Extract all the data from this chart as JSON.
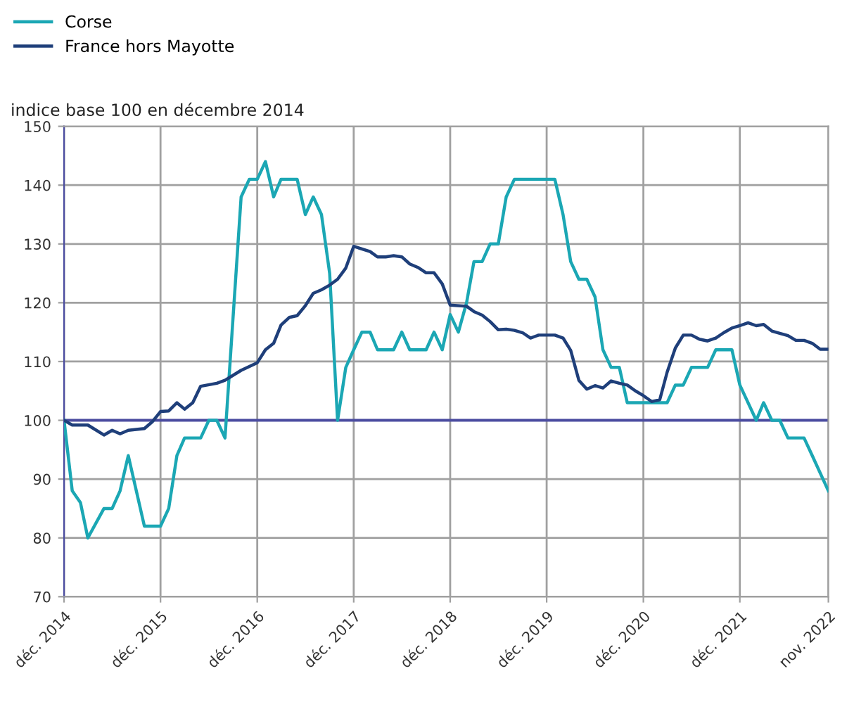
{
  "chart_data": {
    "type": "line",
    "ylabel": "indice base 100 en décembre 2014",
    "series": [
      {
        "name": "Corse",
        "color": "#1ba7b4",
        "x": [
          "2014-12",
          "2015-01",
          "2015-02",
          "2015-03",
          "2015-05",
          "2015-06",
          "2015-07",
          "2015-08",
          "2015-10",
          "2015-12",
          "2016-01",
          "2016-02",
          "2016-03",
          "2016-05",
          "2016-06",
          "2016-07",
          "2016-08",
          "2016-10",
          "2016-11",
          "2016-12",
          "2017-01",
          "2017-02",
          "2017-03",
          "2017-05",
          "2017-06",
          "2017-07",
          "2017-08",
          "2017-09",
          "2017-10",
          "2017-11",
          "2017-12",
          "2018-01",
          "2018-02",
          "2018-03",
          "2018-05",
          "2018-06",
          "2018-07",
          "2018-09",
          "2018-10",
          "2018-11",
          "2018-12",
          "2019-01",
          "2019-02",
          "2019-03",
          "2019-04",
          "2019-05",
          "2019-06",
          "2019-07",
          "2019-08",
          "2020-01",
          "2020-02",
          "2020-03",
          "2020-04",
          "2020-05",
          "2020-06",
          "2020-07",
          "2020-08",
          "2020-09",
          "2020-10",
          "2021-03",
          "2021-04",
          "2021-05",
          "2021-06",
          "2021-08",
          "2021-09",
          "2021-11",
          "2021-12",
          "2022-02",
          "2022-03",
          "2022-04",
          "2022-05",
          "2022-06",
          "2022-08",
          "2022-09",
          "2022-11"
        ],
        "values": [
          100,
          88,
          86,
          80,
          85,
          85,
          88,
          94,
          82,
          82,
          85,
          94,
          97,
          97,
          100,
          100,
          97,
          138,
          141,
          141,
          144,
          138,
          141,
          141,
          135,
          138,
          135,
          125,
          100,
          109,
          112,
          115,
          115,
          112,
          112,
          115,
          112,
          112,
          115,
          112,
          118,
          115,
          120,
          127,
          127,
          130,
          130,
          138,
          141,
          141,
          135,
          127,
          124,
          124,
          121,
          112,
          109,
          109,
          103,
          103,
          106,
          106,
          109,
          109,
          112,
          112,
          106,
          100,
          103,
          100,
          100,
          97,
          97,
          94,
          88
        ]
      },
      {
        "name": "France hors Mayotte",
        "color": "#1f3f7a",
        "x": [
          "2014-12",
          "2015-01",
          "2015-03",
          "2015-05",
          "2015-06",
          "2015-07",
          "2015-08",
          "2015-10",
          "2015-11",
          "2015-12",
          "2016-01",
          "2016-02",
          "2016-03",
          "2016-04",
          "2016-05",
          "2016-07",
          "2016-08",
          "2016-10",
          "2016-12",
          "2017-01",
          "2017-02",
          "2017-03",
          "2017-04",
          "2017-05",
          "2017-06",
          "2017-07",
          "2017-08",
          "2017-09",
          "2017-10",
          "2017-11",
          "2017-12",
          "2018-02",
          "2018-03",
          "2018-04",
          "2018-05",
          "2018-06",
          "2018-07",
          "2018-08",
          "2018-09",
          "2018-10",
          "2018-11",
          "2018-12",
          "2019-02",
          "2019-03",
          "2019-04",
          "2019-05",
          "2019-06",
          "2019-07",
          "2019-08",
          "2019-09",
          "2019-10",
          "2019-11",
          "2020-01",
          "2020-02",
          "2020-03",
          "2020-04",
          "2020-05",
          "2020-06",
          "2020-07",
          "2020-08",
          "2020-09",
          "2020-10",
          "2020-11",
          "2020-12",
          "2021-01",
          "2021-02",
          "2021-03",
          "2021-04",
          "2021-05",
          "2021-06",
          "2021-07",
          "2021-08",
          "2021-09",
          "2021-10",
          "2021-11",
          "2021-12",
          "2022-01",
          "2022-02",
          "2022-03",
          "2022-04",
          "2022-05",
          "2022-06",
          "2022-07",
          "2022-08",
          "2022-09",
          "2022-10",
          "2022-11"
        ],
        "values": [
          100,
          99.2,
          99.2,
          97.5,
          98.3,
          97.7,
          98.3,
          98.6,
          99.8,
          101.5,
          101.6,
          103,
          101.9,
          103,
          105.8,
          106.3,
          106.8,
          108.5,
          109.8,
          112,
          113.1,
          116.2,
          117.5,
          117.8,
          119.5,
          121.6,
          122.2,
          123,
          124,
          125.9,
          129.6,
          128.7,
          127.8,
          127.8,
          128,
          127.8,
          126.6,
          126,
          125.1,
          125.1,
          123.2,
          119.6,
          119.4,
          118.5,
          117.9,
          116.8,
          115.4,
          115.5,
          115.3,
          114.9,
          114,
          114.5,
          114.5,
          114,
          111.9,
          106.8,
          105.3,
          105.9,
          105.5,
          106.7,
          106.3,
          106,
          105,
          104.2,
          103.2,
          103.5,
          108.2,
          112.3,
          114.5,
          114.5,
          113.8,
          113.5,
          114,
          114.9,
          115.7,
          116.1,
          116.6,
          116.1,
          116.3,
          115.2,
          114.8,
          114.4,
          113.6,
          113.6,
          113.1,
          112.1,
          112.1
        ]
      }
    ],
    "xlim": [
      "2014-12",
      "2022-11"
    ],
    "xticks": [
      {
        "value": "2014-12",
        "label": "déc. 2014"
      },
      {
        "value": "2015-12",
        "label": "déc. 2015"
      },
      {
        "value": "2016-12",
        "label": "déc. 2016"
      },
      {
        "value": "2017-12",
        "label": "déc. 2017"
      },
      {
        "value": "2018-12",
        "label": "déc. 2018"
      },
      {
        "value": "2019-12",
        "label": "déc. 2019"
      },
      {
        "value": "2020-12",
        "label": "déc. 2020"
      },
      {
        "value": "2021-12",
        "label": "déc. 2021"
      },
      {
        "value": "2022-11",
        "label": "nov. 2022"
      }
    ],
    "ylim": [
      70,
      150
    ],
    "yticks": [
      70,
      80,
      90,
      100,
      110,
      120,
      130,
      140,
      150
    ],
    "ref_lines": [
      {
        "axis": "y",
        "value": 100,
        "label": null,
        "color": "#4b4ca0"
      }
    ],
    "grid": true,
    "legend": "top left",
    "marker": "none",
    "line_style": "solid"
  }
}
